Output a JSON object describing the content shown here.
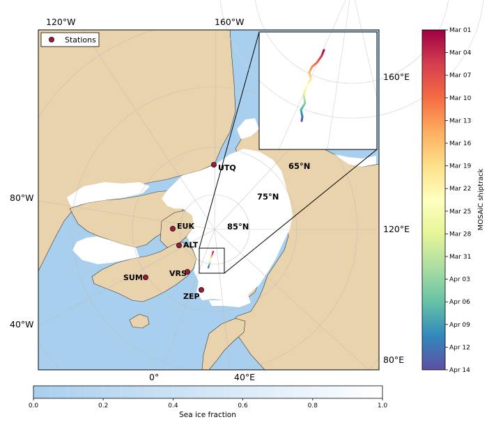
{
  "map": {
    "lon_labels_top": [
      "120°W",
      "160°W"
    ],
    "lon_labels_left": [
      "80°W",
      "40°W"
    ],
    "lon_labels_bottom": [
      "0°",
      "40°E"
    ],
    "lon_labels_right": [
      "160°E",
      "120°E",
      "80°E"
    ],
    "lat_labels": [
      "65°N",
      "75°N",
      "85°N"
    ],
    "stations": [
      "UTQ",
      "EUK",
      "ALT",
      "SUM",
      "VRS",
      "ZEP"
    ],
    "legend_label": "Stations"
  },
  "colorbar_shiptrack": {
    "label": "MOSAiC shiptrack",
    "ticks": [
      "Mar 01",
      "Mar 04",
      "Mar 07",
      "Mar 10",
      "Mar 13",
      "Mar 16",
      "Mar 19",
      "Mar 22",
      "Mar 25",
      "Mar 28",
      "Mar 31",
      "Apr 03",
      "Apr 06",
      "Apr 09",
      "Apr 12",
      "Apr 14"
    ]
  },
  "colorbar_ice": {
    "label": "Sea ice fraction",
    "ticks": [
      "0.0",
      "0.2",
      "0.4",
      "0.6",
      "0.8",
      "1.0"
    ]
  },
  "colors": {
    "land": "#e9d3ad",
    "ocean": "#a9cfee",
    "ice": "#ffffff",
    "station": "#a01838"
  }
}
